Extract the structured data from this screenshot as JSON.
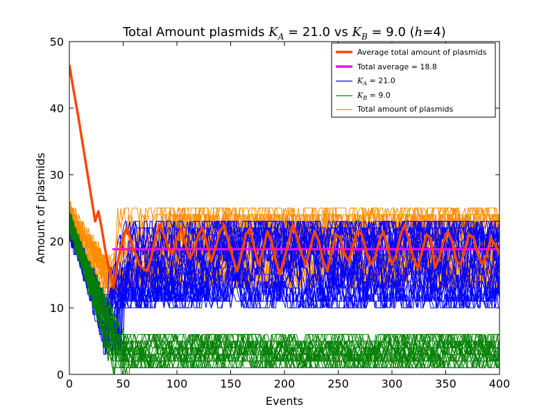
{
  "chart_data": {
    "type": "line",
    "title": {
      "prefix": "Total Amount plasmids ",
      "ka_symbol": "K",
      "ka_sub": "A",
      "ka_value": " = 21.0 vs ",
      "kb_symbol": "K",
      "kb_sub": "B",
      "kb_value": " = 9.0 (",
      "h_symbol": "h",
      "h_value": "=4)"
    },
    "xlabel": "Events",
    "ylabel": "Amount of plasmids",
    "xlim": [
      0,
      400
    ],
    "ylim": [
      0,
      50
    ],
    "xticks": [
      0,
      50,
      100,
      150,
      200,
      250,
      300,
      350,
      400
    ],
    "yticks": [
      0,
      10,
      20,
      30,
      40,
      50
    ],
    "grid": false,
    "legend_position": "top-right",
    "legend": [
      {
        "label": "Average total amount of plasmids",
        "color": "#ff4500",
        "kind": "thick"
      },
      {
        "label": "Total average = 18.8",
        "color": "#ff00ff",
        "kind": "thick"
      },
      {
        "label_symbol": "K",
        "label_sub": "A",
        "label_value": " = 21.0",
        "color": "#0000ff",
        "kind": "thin"
      },
      {
        "label_symbol": "K",
        "label_sub": "B",
        "label_value": " = 9.0",
        "color": "#008000",
        "kind": "thin"
      },
      {
        "label": "Total amount of plasmids",
        "color": "#ff8c00",
        "kind": "thin"
      }
    ],
    "total_average": {
      "value": 18.8,
      "x_start": 40,
      "x_end": 400,
      "color": "#ff00ff"
    },
    "average_total": {
      "color": "#ff4500",
      "x": [
        0,
        3,
        8,
        12,
        16,
        20,
        24,
        27,
        30,
        33,
        36,
        39,
        41,
        44,
        47,
        50,
        53,
        56,
        59,
        62,
        65,
        68,
        72,
        76,
        80,
        84,
        88,
        92,
        96,
        100,
        104,
        108,
        112,
        116,
        120,
        124,
        128,
        132,
        136,
        140,
        144,
        148,
        152,
        156,
        160,
        164,
        168,
        172,
        176,
        180,
        184,
        188,
        192,
        196,
        200,
        204,
        208,
        212,
        216,
        220,
        224,
        228,
        232,
        236,
        240,
        244,
        248,
        252,
        256,
        260,
        264,
        268,
        272,
        276,
        280,
        284,
        288,
        292,
        296,
        300,
        304,
        308,
        312,
        316,
        320,
        324,
        328,
        332,
        336,
        340,
        344,
        348,
        352,
        356,
        360,
        364,
        368,
        372,
        376,
        380,
        384,
        388,
        392,
        396,
        400
      ],
      "y": [
        46.5,
        43.5,
        39.0,
        35.0,
        31.0,
        27.0,
        23.0,
        24.5,
        22.0,
        19.0,
        16.5,
        14.5,
        13.0,
        16.0,
        18.5,
        20.5,
        22.0,
        21.0,
        19.0,
        18.0,
        16.5,
        16.0,
        15.5,
        17.5,
        20.5,
        22.5,
        21.0,
        19.0,
        18.0,
        20.5,
        22.0,
        19.5,
        17.5,
        18.5,
        21.0,
        22.0,
        19.5,
        17.0,
        19.0,
        21.5,
        22.5,
        20.0,
        17.5,
        15.5,
        18.0,
        21.0,
        22.0,
        19.0,
        16.5,
        18.5,
        21.5,
        20.0,
        17.0,
        15.0,
        17.5,
        20.0,
        22.5,
        20.5,
        18.0,
        16.5,
        19.0,
        21.5,
        20.0,
        17.0,
        15.5,
        18.5,
        21.0,
        20.5,
        18.0,
        17.0,
        19.5,
        21.5,
        21.0,
        18.5,
        16.5,
        17.5,
        20.0,
        21.5,
        19.0,
        16.5,
        18.0,
        21.0,
        22.5,
        20.0,
        17.5,
        16.0,
        18.5,
        21.0,
        20.5,
        16.0,
        17.5,
        20.0,
        21.5,
        20.0,
        17.0,
        16.5,
        19.0,
        21.0,
        20.5,
        18.0,
        16.5,
        18.0,
        20.5,
        19.5,
        18.0
      ]
    },
    "series_bands": [
      {
        "key": "total",
        "color": "#ff8c00",
        "count": 30,
        "start_mean": 24.5,
        "dip_x": 40,
        "dip_min": 10,
        "steady_low": 12,
        "steady_high": 26,
        "peak": 26
      },
      {
        "key": "ka",
        "color": "#0000ff",
        "count": 30,
        "start_mean": 22.5,
        "dip_x": 40,
        "dip_min": 3,
        "steady_low": 9,
        "steady_high": 24,
        "peak": 24
      },
      {
        "key": "kb",
        "color": "#008000",
        "count": 30,
        "start_mean": 23.0,
        "dip_x": 45,
        "dip_min": 0,
        "steady_low": 0,
        "steady_high": 7,
        "peak": 7
      }
    ]
  }
}
